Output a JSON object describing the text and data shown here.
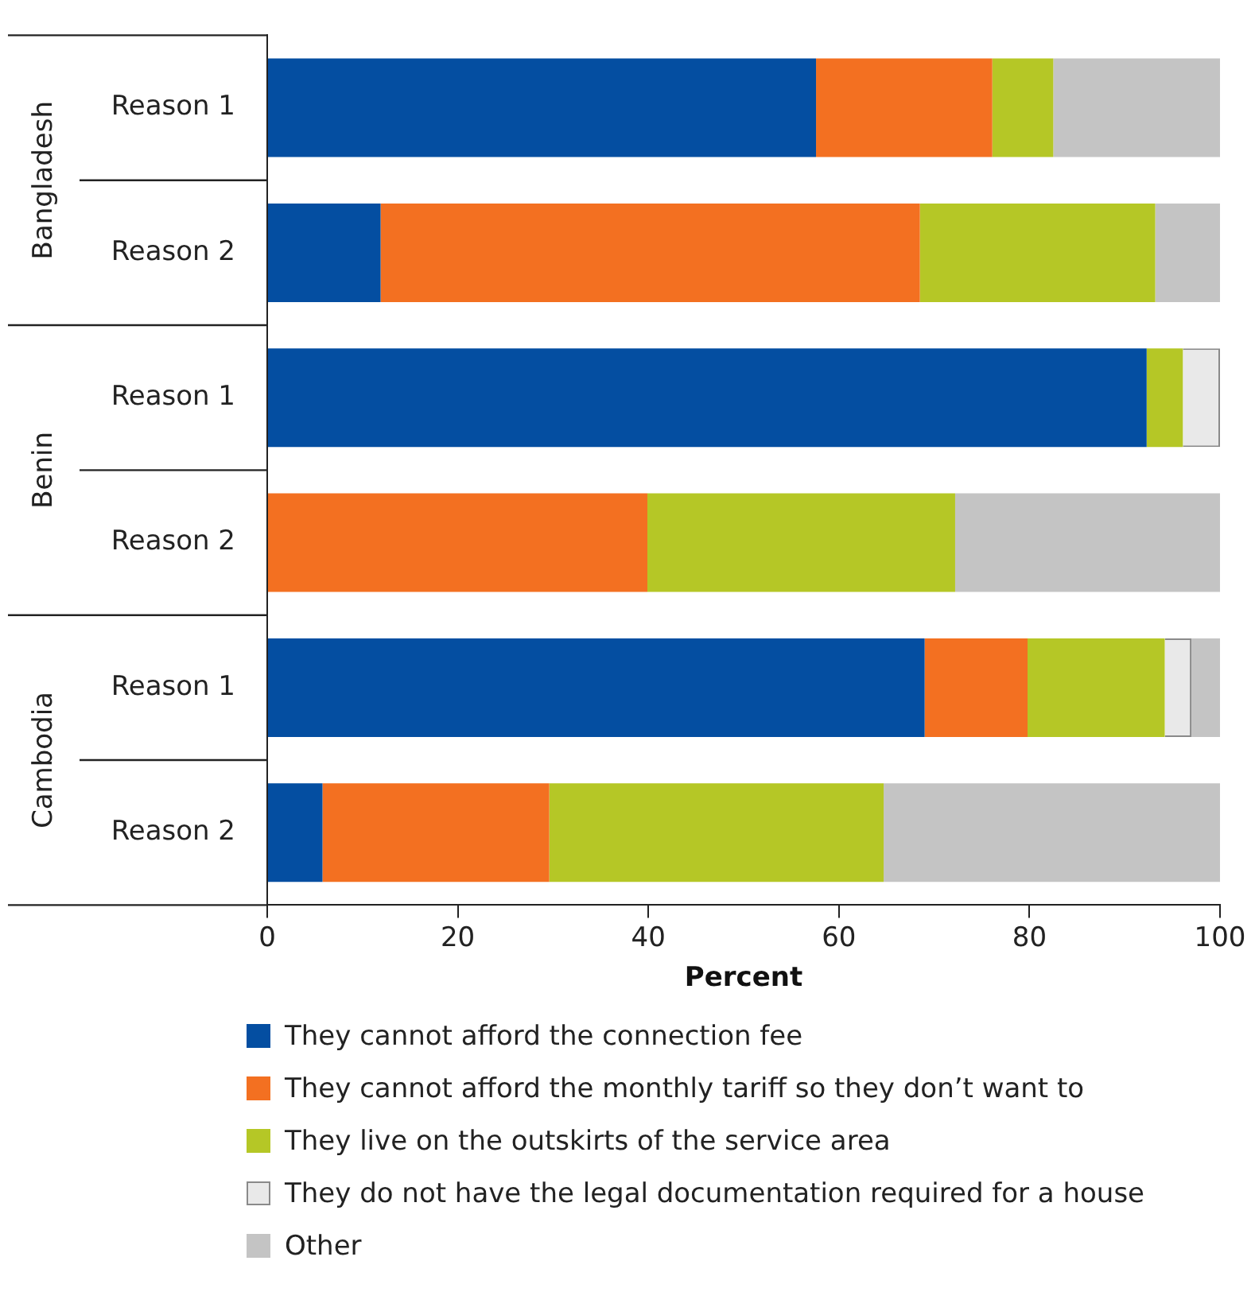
{
  "chart_data": {
    "type": "bar",
    "orientation": "horizontal",
    "stacked": true,
    "categories": [
      "Reason 1",
      "Reason 2",
      "Reason 1",
      "Reason 2",
      "Reason 1",
      "Reason 2"
    ],
    "annotations": [
      "Bangladesh",
      "Benin",
      "Cambodia"
    ],
    "xlabel": "Percent",
    "xlim": [
      0,
      100
    ],
    "xticks": [
      0,
      20,
      40,
      60,
      80,
      100
    ],
    "grid": false,
    "legend": "bottom",
    "series": [
      {
        "name": "They cannot afford the connection fee",
        "color": "#044ea1",
        "values": [
          57.6,
          11.9,
          92.3,
          0,
          69.0,
          5.8
        ]
      },
      {
        "name": "They cannot afford the monthly tariff so they don’t want to",
        "color": "#f37021",
        "values": [
          18.5,
          56.6,
          0,
          39.9,
          10.8,
          23.8
        ]
      },
      {
        "name": "They live on the outskirts of the service area",
        "color": "#b5c726",
        "values": [
          6.4,
          24.7,
          3.8,
          32.3,
          14.4,
          35.1
        ]
      },
      {
        "name": "They do not have the legal documentation required for a house",
        "color": "#e9e9e9",
        "values": [
          0,
          0,
          3.9,
          0,
          2.8,
          0
        ]
      },
      {
        "name": "Other",
        "color": "#c4c4c4",
        "values": [
          17.5,
          6.8,
          0,
          27.8,
          3.0,
          35.3
        ]
      }
    ]
  }
}
